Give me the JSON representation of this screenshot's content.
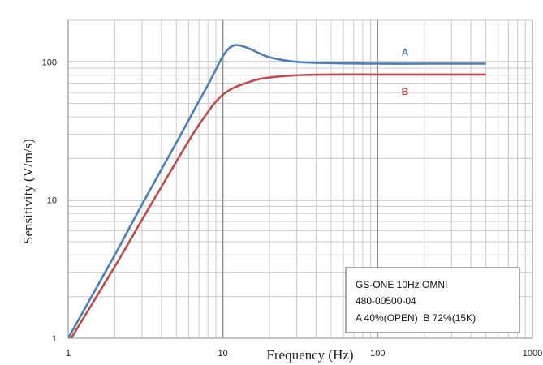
{
  "chart_data": {
    "type": "line",
    "xlabel": "Frequency (Hz)",
    "ylabel": "Sensitivity (V/m/s)",
    "x_scale": "log",
    "y_scale": "log",
    "xlim": [
      1,
      1000
    ],
    "ylim": [
      1,
      200
    ],
    "x_ticks": [
      "1",
      "10",
      "100",
      "1000"
    ],
    "y_ticks": [
      "1",
      "10",
      "100"
    ],
    "grid": true,
    "series": [
      {
        "name": "A",
        "color": "#4a7ebb",
        "x": [
          1,
          2,
          3,
          5,
          7,
          8,
          9,
          10,
          11,
          12,
          13,
          15,
          20,
          30,
          50,
          100,
          200,
          500
        ],
        "y": [
          1.0,
          4.0,
          9.3,
          26,
          52,
          68,
          88,
          110,
          126,
          132,
          131,
          124,
          108,
          100,
          98,
          97,
          97,
          97
        ]
      },
      {
        "name": "B",
        "color": "#be4b48",
        "x": [
          1,
          2,
          3,
          5,
          7,
          10,
          15,
          20,
          30,
          50,
          100,
          200,
          500
        ],
        "y": [
          0.8,
          3.3,
          7.2,
          19,
          35,
          58,
          72,
          77,
          80,
          81,
          81,
          81,
          81
        ]
      }
    ],
    "annotation": [
      "GS-ONE 10Hz OMNI",
      "480-00500-04",
      "A 40%(OPEN)  B 72%(15K)"
    ]
  }
}
